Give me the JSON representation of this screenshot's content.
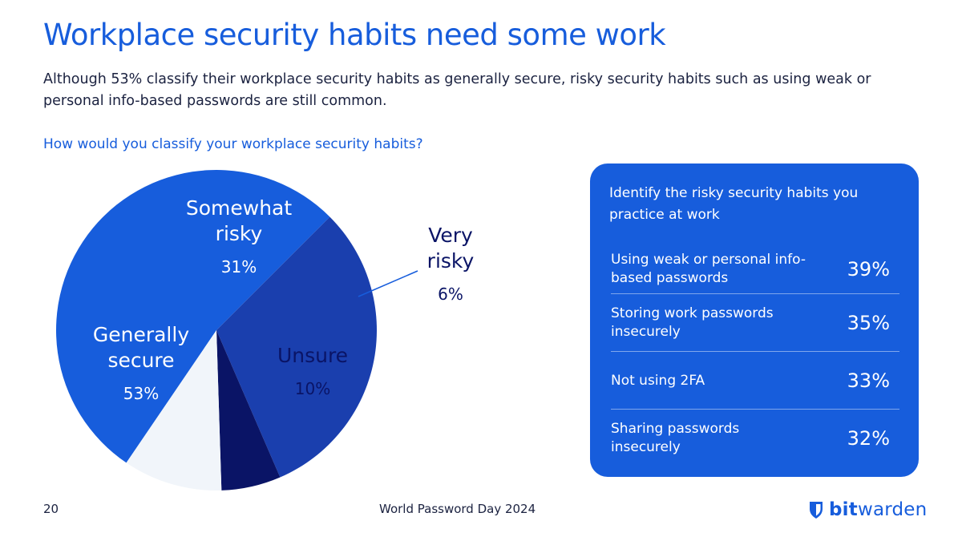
{
  "header": {
    "title": "Workplace security habits need some work",
    "subtitle": "Although 53% classify their workplace security habits as generally secure, risky security habits such as using weak or personal info-based passwords are still common."
  },
  "chart_data": {
    "type": "pie",
    "title": "How would you classify your workplace security habits?",
    "slices": [
      {
        "label_lines": [
          "Generally",
          "secure"
        ],
        "value": 53,
        "value_label": "53%",
        "color": "#175DDC",
        "text_color": "#ffffff"
      },
      {
        "label_lines": [
          "Somewhat",
          "risky"
        ],
        "value": 31,
        "value_label": "31%",
        "color": "#1A3FAE",
        "text_color": "#ffffff"
      },
      {
        "label_lines": [
          "Very",
          "risky"
        ],
        "value": 6,
        "value_label": "6%",
        "color": "#0A1466",
        "text_color": "#0A1466"
      },
      {
        "label_lines": [
          "Unsure"
        ],
        "value": 10,
        "value_label": "10%",
        "color": "#F1F5FA",
        "text_color": "#0A1466"
      }
    ]
  },
  "panel": {
    "title": "Identify the risky security habits you practice at work",
    "items": [
      {
        "label": "Using weak or personal info-based passwords",
        "value": "39%"
      },
      {
        "label": "Storing work passwords insecurely",
        "value": "35%"
      },
      {
        "label": "Not using 2FA",
        "value": "33%"
      },
      {
        "label": "Sharing passwords insecurely",
        "value": "32%"
      }
    ]
  },
  "footer": {
    "page_number": "20",
    "center": "World Password Day 2024",
    "logo_bold": "bit",
    "logo_rest": "warden",
    "logo_icon": "shield-icon"
  },
  "colors": {
    "brand_blue": "#175DDC",
    "text_dark": "#1b2240"
  }
}
